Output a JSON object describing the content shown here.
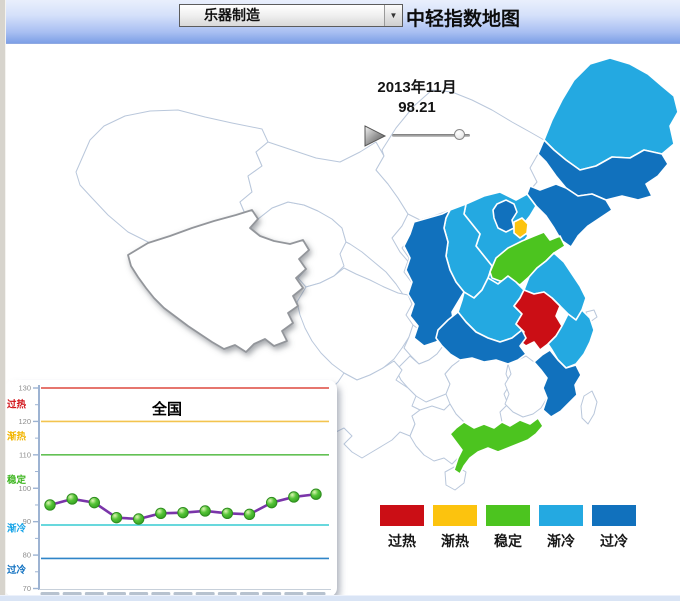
{
  "header": {
    "dropdown_value": "乐器制造",
    "title": "中轻指数地图"
  },
  "controls": {
    "date_label": "2013年11月",
    "value_label": "98.21",
    "slider_position_pct": 92
  },
  "legend": {
    "items": [
      {
        "label": "过热",
        "color": "#cb0e15"
      },
      {
        "label": "渐热",
        "color": "#fcc30e"
      },
      {
        "label": "稳定",
        "color": "#4cc41f"
      },
      {
        "label": "渐冷",
        "color": "#24a9e1"
      },
      {
        "label": "过冷",
        "color": "#1171bd"
      }
    ]
  },
  "map": {
    "category_colors": {
      "过热": "#cb0e15",
      "渐热": "#fcc30e",
      "稳定": "#4cc41f",
      "渐冷": "#24a9e1",
      "过冷": "#1171bd"
    },
    "province_categories": {
      "heilongjiang": "渐冷",
      "jilin": "过冷",
      "liaoning": "过冷",
      "hebei": "渐冷",
      "beijing": "过冷",
      "tianjin": "渐热",
      "shanxi": "渐冷",
      "shaanxi": "过冷",
      "shandong": "稳定",
      "henan": "渐冷",
      "jiangsu": "渐冷",
      "anhui": "过热",
      "zhejiang": "渐冷",
      "hubei": "过冷",
      "fujian": "过冷",
      "guangdong": "稳定"
    }
  },
  "chart_data": {
    "type": "line",
    "title": "全国",
    "values": [
      95.0,
      96.8,
      95.7,
      91.2,
      90.8,
      92.5,
      92.7,
      93.2,
      92.5,
      92.2,
      95.7,
      97.4,
      98.21
    ],
    "x_tick_labels": [
      "",
      "",
      "",
      "",
      "",
      "",
      "",
      "",
      "",
      "",
      "",
      "",
      ""
    ],
    "ylim": [
      70,
      130
    ],
    "yticks": [
      70,
      80,
      90,
      100,
      110,
      120,
      130
    ],
    "threshold_lines": [
      {
        "value": 130,
        "color": "#e2635a"
      },
      {
        "value": 120,
        "color": "#f3c44f"
      },
      {
        "value": 110,
        "color": "#63c155"
      },
      {
        "value": 89,
        "color": "#52d2d8"
      },
      {
        "value": 79,
        "color": "#2f85c8"
      }
    ],
    "zones": [
      {
        "label": "过热",
        "at": 125.0,
        "color": "#d11016"
      },
      {
        "label": "渐热",
        "at": 115.5,
        "color": "#f2b500"
      },
      {
        "label": "稳定",
        "at": 102.5,
        "color": "#3db520"
      },
      {
        "label": "渐冷",
        "at": 88.0,
        "color": "#1ba6e8"
      },
      {
        "label": "过冷",
        "at": 75.5,
        "color": "#0d6fc0"
      }
    ],
    "series_color": "#7a35a9",
    "marker_color": "#4db434",
    "grid": false,
    "legend_position": "none"
  }
}
